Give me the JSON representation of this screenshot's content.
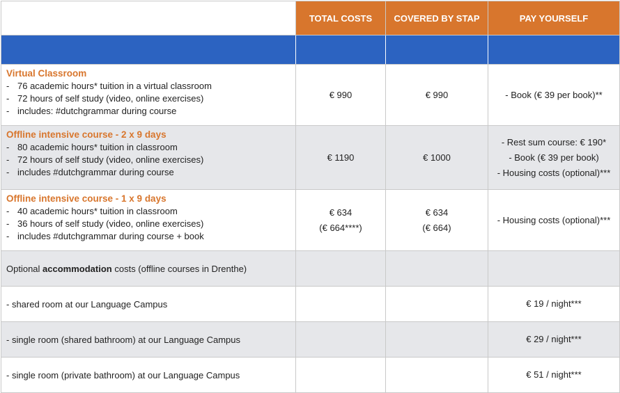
{
  "header": {
    "col_total": "TOTAL COSTS",
    "col_covered": "COVERED BY STAP",
    "col_pay": "PAY YOURSELF"
  },
  "courses": [
    {
      "title": "Virtual Classroom",
      "features": [
        "76 academic hours* tuition in a virtual classroom",
        "72 hours of self study (video, online exercises)",
        "includes: #dutchgrammar during course"
      ],
      "total": [
        "€ 990"
      ],
      "covered": [
        "€ 990"
      ],
      "pay": [
        "- Book (€ 39 per book)**"
      ]
    },
    {
      "title": "Offline intensive course - 2 x 9 days",
      "features": [
        "80 academic hours* tuition in classroom",
        "72 hours of self study (video, online exercises)",
        "includes #dutchgrammar during course"
      ],
      "total": [
        "€ 1190"
      ],
      "covered": [
        "€ 1000"
      ],
      "pay": [
        "- Rest sum course: € 190*",
        "- Book (€ 39 per book)",
        "- Housing costs (optional)***"
      ]
    },
    {
      "title": "Offline intensive course - 1 x 9 days",
      "features": [
        "40 academic hours* tuition in classroom",
        "36 hours of self study (video, online exercises)",
        "includes #dutchgrammar during course + book"
      ],
      "total": [
        "€ 634",
        "(€ 664****)"
      ],
      "covered": [
        "€ 634",
        "(€ 664)"
      ],
      "pay": [
        "- Housing costs (optional)***"
      ]
    }
  ],
  "accommodation": {
    "prefix": "Optional ",
    "bold": "accommodation",
    "suffix": " costs (offline courses in Drenthe)",
    "rooms": [
      {
        "label": "- shared room at our Language Campus",
        "price": "€ 19 / night***"
      },
      {
        "label": "- single room (shared bathroom) at our Language Campus",
        "price": "€ 29 / night***"
      },
      {
        "label": "- single room (private bathroom) at our Language Campus",
        "price": "€ 51 / night***"
      }
    ]
  },
  "colors": {
    "header_orange": "#d8762d",
    "band_blue": "#2c63c1",
    "row_grey": "#e6e7ea"
  }
}
